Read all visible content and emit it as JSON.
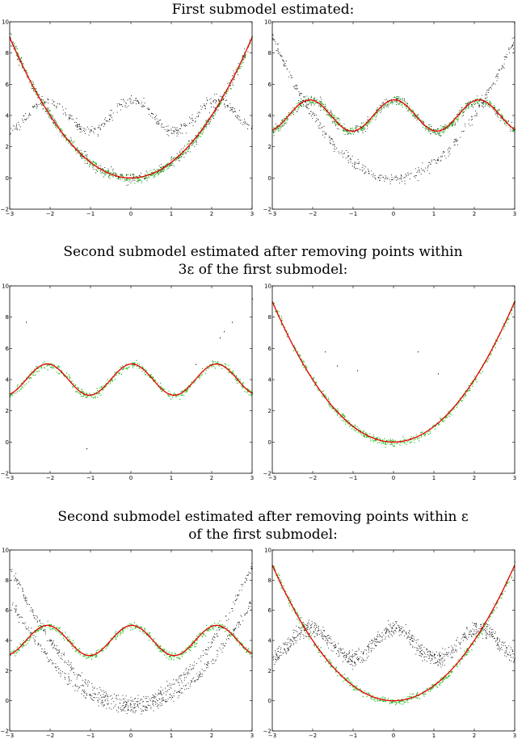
{
  "captions": [
    "First submodel estimated:",
    "Second submodel estimated after removing points within",
    "3ε of the first submodel:",
    "Second submodel estimated after removing points within ε",
    "of the first submodel:"
  ],
  "colors": {
    "points": "#000000",
    "inliers": "#22bb22",
    "fit": "#ee0000",
    "axes": "#000000"
  },
  "chart_data": [
    {
      "type": "scatter",
      "xlim": [
        -3,
        3
      ],
      "ylim": [
        -2,
        10
      ],
      "xticks": [
        -3,
        -2,
        -1,
        0,
        1,
        2,
        3
      ],
      "yticks": [
        -2,
        0,
        2,
        4,
        6,
        8,
        10
      ],
      "clouds": [
        "parabola",
        "wave"
      ],
      "inliers": "parabola",
      "fit": "parabola",
      "fit_range": [
        -3,
        3
      ]
    },
    {
      "type": "scatter",
      "xlim": [
        -3,
        3
      ],
      "ylim": [
        -2,
        10
      ],
      "xticks": [
        -3,
        -2,
        -1,
        0,
        1,
        2,
        3
      ],
      "yticks": [
        -2,
        0,
        2,
        4,
        6,
        8,
        10
      ],
      "clouds": [
        "parabola",
        "wave"
      ],
      "inliers": "wave",
      "fit": "wave",
      "fit_range": [
        -3,
        3
      ]
    },
    {
      "type": "scatter",
      "xlim": [
        -3,
        3
      ],
      "ylim": [
        -2,
        10
      ],
      "xticks": [
        -3,
        -2,
        -1,
        0,
        1,
        2,
        3
      ],
      "yticks": [
        -2,
        0,
        2,
        4,
        6,
        8,
        10
      ],
      "clouds": [],
      "inliers": "wave",
      "fit": "wave",
      "fit_range": [
        -3,
        3
      ],
      "stray_points": [
        [
          -2.6,
          7.7
        ],
        [
          -1.1,
          -0.4
        ],
        [
          1.6,
          5.0
        ],
        [
          2.2,
          6.7
        ],
        [
          2.3,
          7.1
        ],
        [
          2.5,
          7.7
        ],
        [
          3.0,
          9.2
        ]
      ]
    },
    {
      "type": "scatter",
      "xlim": [
        -3,
        3
      ],
      "ylim": [
        -2,
        10
      ],
      "xticks": [
        -3,
        -2,
        -1,
        0,
        1,
        2,
        3
      ],
      "yticks": [
        -2,
        0,
        2,
        4,
        6,
        8,
        10
      ],
      "clouds": [],
      "inliers": "parabola",
      "fit": "parabola",
      "fit_range": [
        -3,
        3
      ],
      "stray_points": [
        [
          -1.7,
          5.8
        ],
        [
          0.6,
          5.8
        ],
        [
          -0.9,
          4.6
        ],
        [
          -1.4,
          4.9
        ],
        [
          1.1,
          4.4
        ]
      ]
    },
    {
      "type": "scatter",
      "xlim": [
        -3,
        3
      ],
      "ylim": [
        -2,
        10
      ],
      "xticks": [
        -3,
        -2,
        -1,
        0,
        1,
        2,
        3
      ],
      "yticks": [
        -2,
        0,
        2,
        4,
        6,
        8,
        10
      ],
      "clouds": [
        "parabola",
        "parabola_low"
      ],
      "inliers": "wave",
      "fit": "wave",
      "fit_range": [
        -3,
        3
      ]
    },
    {
      "type": "scatter",
      "xlim": [
        -3,
        3
      ],
      "ylim": [
        -2,
        10
      ],
      "xticks": [
        -3,
        -2,
        -1,
        0,
        1,
        2,
        3
      ],
      "yticks": [
        -2,
        0,
        2,
        4,
        6,
        8,
        10
      ],
      "clouds": [
        "wave",
        "wave_low"
      ],
      "inliers": "parabola",
      "fit": "parabola",
      "fit_range": [
        -3,
        3
      ]
    }
  ]
}
